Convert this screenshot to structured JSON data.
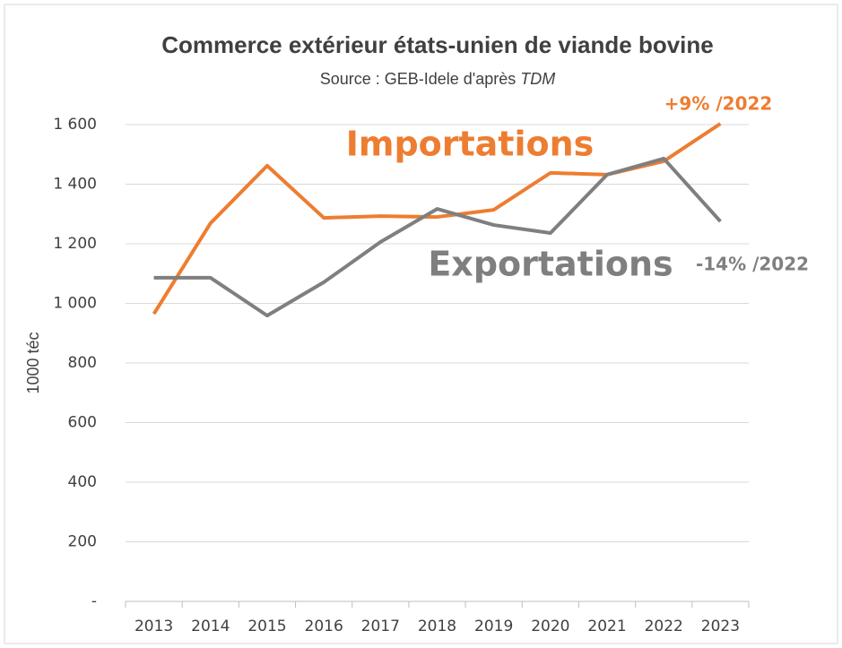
{
  "chart_data": {
    "type": "line",
    "title": "Commerce extérieur états-unien de viande bovine",
    "subtitle": [
      "Source : GEB-Idele d'après",
      "TDM"
    ],
    "ylabel": "1000 téc",
    "categories": [
      "2013",
      "2014",
      "2015",
      "2016",
      "2017",
      "2018",
      "2019",
      "2020",
      "2021",
      "2022",
      "2023"
    ],
    "series": [
      {
        "name": "Importations",
        "color": "#ED7D31",
        "values": [
          965,
          1269,
          1462,
          1287,
          1293,
          1290,
          1314,
          1438,
          1432,
          1477,
          1603
        ]
      },
      {
        "name": "Exportations",
        "color": "#7F7F7F",
        "values": [
          1086,
          1086,
          959,
          1071,
          1206,
          1317,
          1263,
          1236,
          1432,
          1486,
          1275
        ]
      }
    ],
    "annotations": [
      {
        "text": "+9% /2022",
        "color": "#ED7D31"
      },
      {
        "text": "-14% /2022",
        "color": "#7F7F7F"
      }
    ],
    "ylim": [
      0,
      1600
    ],
    "yticks": [
      {
        "value": 0,
        "label": "-"
      },
      200,
      400,
      600,
      800,
      {
        "value": 1000,
        "label": "1 000"
      },
      {
        "value": 1200,
        "label": "1 200"
      },
      {
        "value": 1400,
        "label": "1 400"
      },
      {
        "value": 1600,
        "label": "1 600"
      }
    ],
    "grid": true
  }
}
